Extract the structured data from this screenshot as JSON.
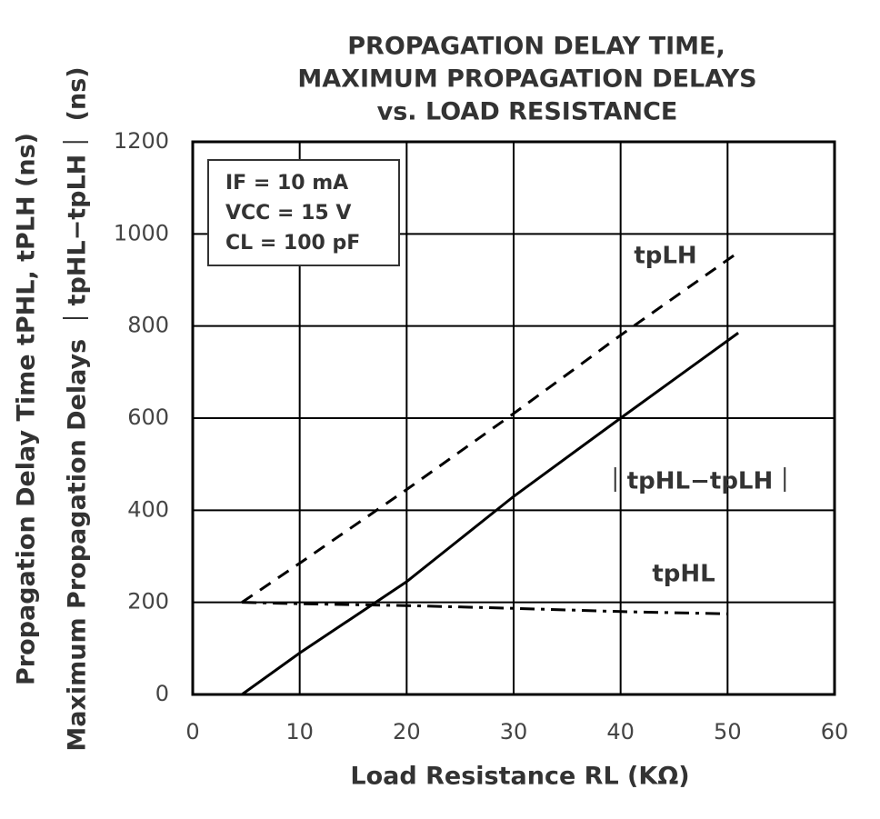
{
  "chart_data": {
    "type": "line",
    "title": [
      "PROPAGATION DELAY TIME,",
      "MAXIMUM PROPAGATION DELAYS",
      "vs. LOAD RESISTANCE"
    ],
    "x_label": "Load Resistance RL (KΩ)",
    "y_label": [
      "Propagation Delay Time tPHL, tPLH (ns)",
      "Maximum Propagation Delays ｜tpHL−tpLH｜ (ns)"
    ],
    "annotations": [
      "IF = 10 mA",
      "VCC = 15 V",
      "CL = 100 pF"
    ],
    "xlim": [
      0,
      60
    ],
    "xticks": [
      0,
      10,
      20,
      30,
      40,
      50,
      60
    ],
    "ylim": [
      0,
      1200
    ],
    "yticks": [
      0,
      200,
      400,
      600,
      800,
      1000,
      1200
    ],
    "grid": true,
    "series": [
      {
        "name": "tpLH",
        "color": "#000000",
        "dash": "dashed",
        "x": [
          4.6,
          10,
          20,
          30,
          40,
          51
        ],
        "values": [
          200,
          285,
          445,
          610,
          780,
          960
        ]
      },
      {
        "name": "｜tpHL−tpLH｜",
        "color": "#000000",
        "dash": "solid",
        "x": [
          4.6,
          10,
          20,
          30,
          40,
          51
        ],
        "values": [
          0,
          90,
          245,
          430,
          600,
          785
        ]
      },
      {
        "name": "tpHL",
        "color": "#000000",
        "dash": "dashdot",
        "x": [
          4.6,
          10,
          20,
          30,
          40,
          50
        ],
        "values": [
          200,
          197,
          193,
          187,
          180,
          175
        ]
      }
    ]
  }
}
